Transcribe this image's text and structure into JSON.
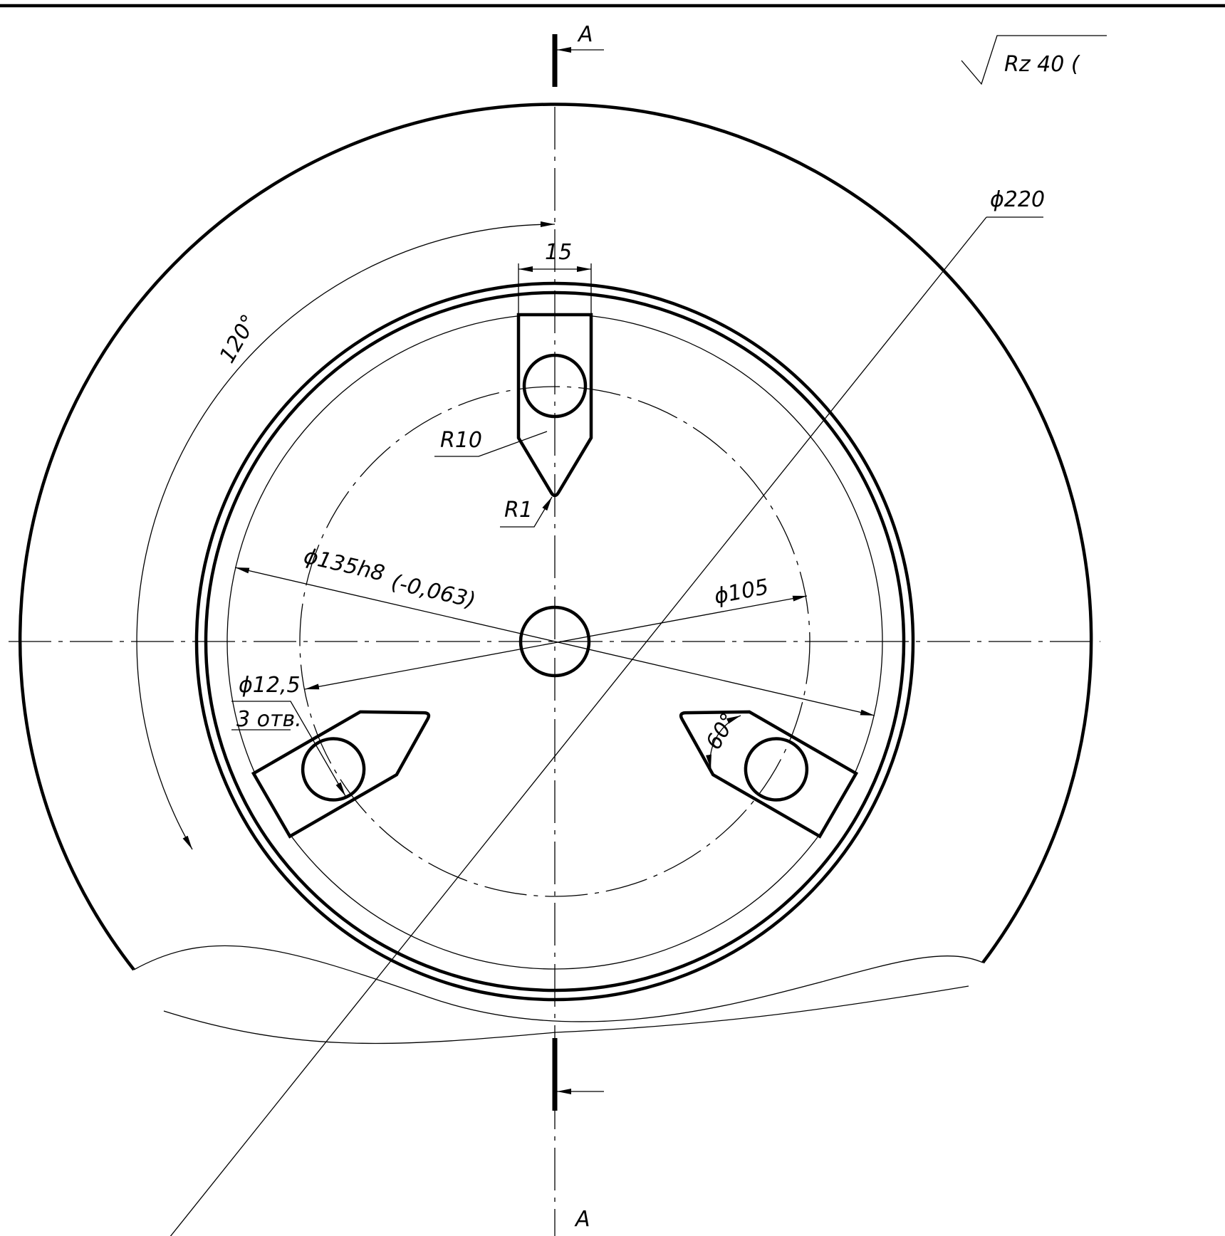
{
  "section_label_top": "A",
  "section_label_bottom": "A",
  "roughness": "Rz 40 (",
  "dims": {
    "d220": "ϕ220",
    "w15": "15",
    "angle120": "120°",
    "r10": "R10",
    "r1": "R1",
    "d135": "ϕ135h8",
    "d135_tol": "(-0,063)",
    "d105": "ϕ105",
    "d12_5": "ϕ12,5",
    "holes": "3 отв.",
    "angle60": "60°"
  }
}
